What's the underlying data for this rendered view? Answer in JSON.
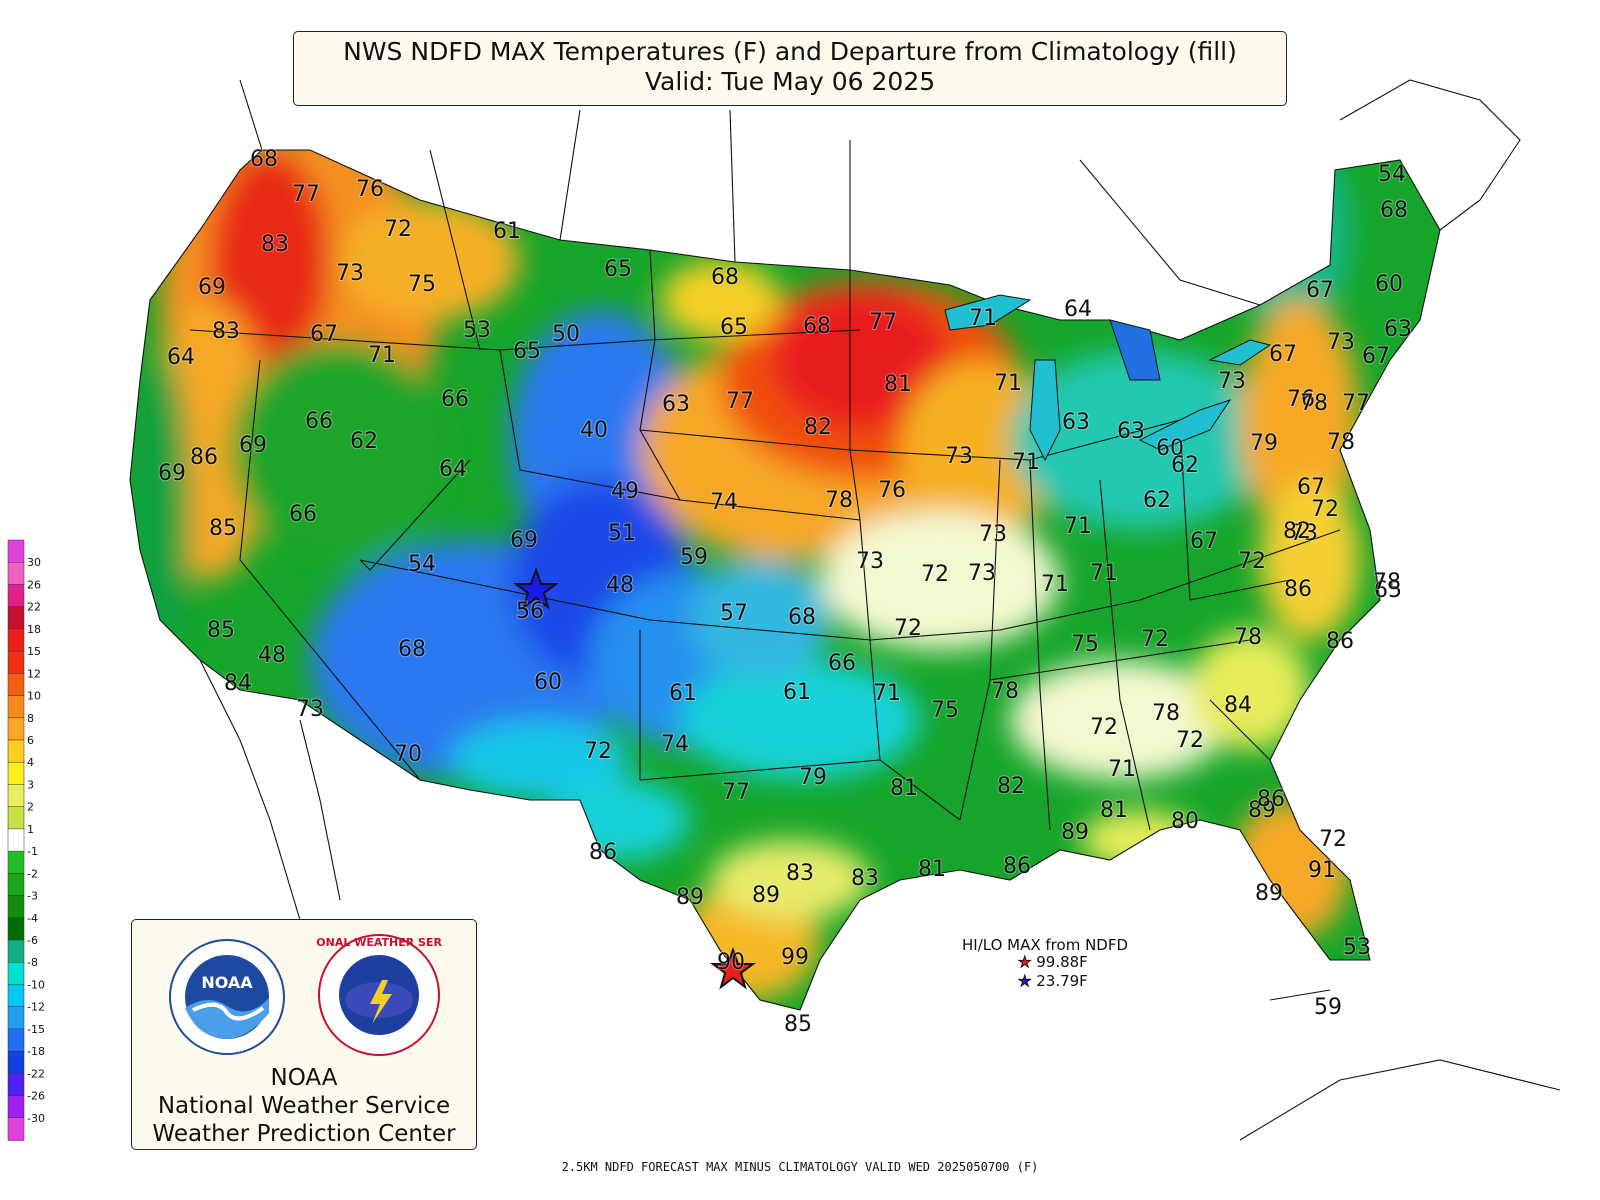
{
  "title": {
    "line1": "NWS NDFD MAX Temperatures (F) and Departure from Climatology (fill)",
    "line2": "Valid: Tue May 06 2025"
  },
  "footer": "2.5KM NDFD FORECAST MAX MINUS CLIMATOLOGY VALID WED 2025050700 (F)",
  "hilo": {
    "heading": "HI/LO MAX from NDFD",
    "hi": "99.88F",
    "lo": "23.79F",
    "hi_icon": "red-star-icon",
    "lo_icon": "blue-star-icon"
  },
  "logo": {
    "line1": "NOAA",
    "line2": "National Weather Service",
    "line3": "Weather Prediction Center",
    "noaa_icon": "noaa-logo-icon",
    "nws_icon": "nws-logo-icon",
    "nws_ring_text": "NATIONAL WEATHER SERVICE"
  },
  "legend": {
    "labels": [
      "30",
      "26",
      "22",
      "18",
      "15",
      "12",
      "10",
      "8",
      "6",
      "4",
      "3",
      "2",
      "1",
      "-1",
      "-2",
      "-3",
      "-4",
      "-6",
      "-8",
      "-10",
      "-12",
      "-15",
      "-18",
      "-22",
      "-26",
      "-30"
    ],
    "colors": [
      "#e040e0",
      "#f060c0",
      "#e0208a",
      "#c8102e",
      "#e8201a",
      "#f03010",
      "#f06010",
      "#f88a18",
      "#f8a820",
      "#fcd020",
      "#f8f020",
      "#e8f060",
      "#c8e040",
      "#ffffff",
      "#20c020",
      "#18a818",
      "#108c10",
      "#006e00",
      "#10b080",
      "#00e0d0",
      "#00c8f0",
      "#20a0f0",
      "#2070f0",
      "#1040e0",
      "#5020f0",
      "#a020f0",
      "#e040e0"
    ]
  },
  "temperatures": [
    "68",
    "77",
    "76",
    "83",
    "72",
    "61",
    "69",
    "73",
    "75",
    "65",
    "65",
    "68",
    "83",
    "67",
    "53",
    "50",
    "65",
    "68",
    "77",
    "71",
    "64",
    "64",
    "71",
    "66",
    "63",
    "77",
    "81",
    "71",
    "86",
    "69",
    "66",
    "62",
    "40",
    "82",
    "73",
    "71",
    "63",
    "63",
    "60",
    "69",
    "64",
    "49",
    "74",
    "78",
    "76",
    "62",
    "85",
    "66",
    "51",
    "73",
    "71",
    "62",
    "67",
    "73",
    "54",
    "69",
    "59",
    "73",
    "72",
    "73",
    "71",
    "71",
    "72",
    "76",
    "56",
    "48",
    "57",
    "68",
    "72",
    "75",
    "72",
    "78",
    "65",
    "85",
    "48",
    "68",
    "66",
    "84",
    "73",
    "60",
    "61",
    "61",
    "71",
    "75",
    "78",
    "78",
    "84",
    "86",
    "72",
    "72",
    "70",
    "72",
    "74",
    "79",
    "81",
    "82",
    "71",
    "77",
    "81",
    "89",
    "80",
    "89",
    "86",
    "72",
    "86",
    "83",
    "83",
    "81",
    "86",
    "91",
    "89",
    "89",
    "89",
    "99",
    "90",
    "85",
    "59",
    "53",
    "54",
    "68",
    "60",
    "67",
    "63",
    "73",
    "67",
    "67",
    "73",
    "78",
    "77",
    "78",
    "67",
    "72",
    "79",
    "82",
    "78",
    "86"
  ]
}
